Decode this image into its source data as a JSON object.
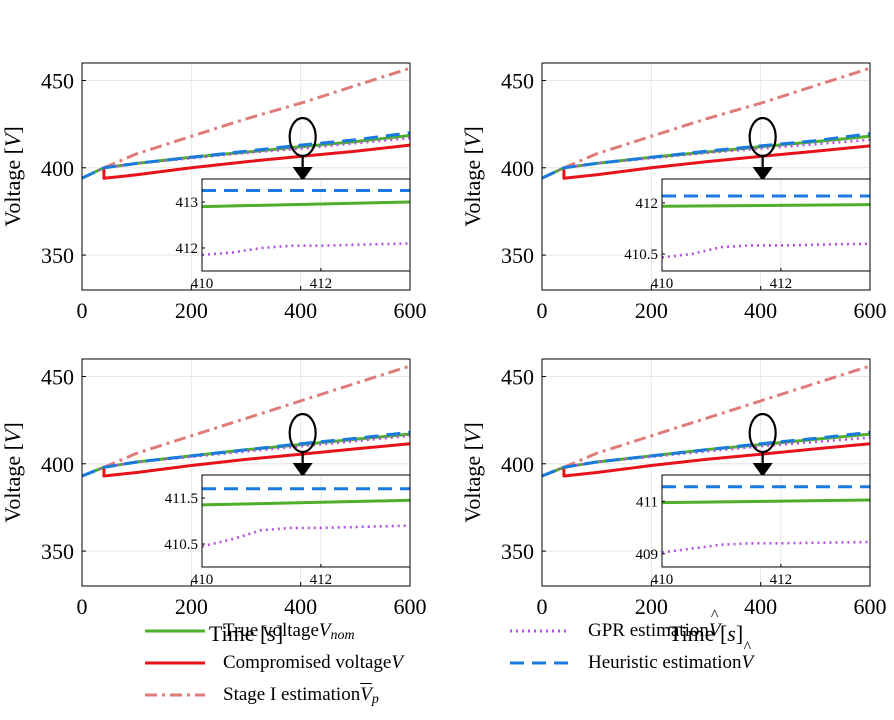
{
  "chart_data": [
    {
      "type": "line",
      "panel": "top-left",
      "ylabel_text": "Voltage [",
      "ylabel_unit": "V",
      "ylabel_close": "]",
      "xlim": [
        0,
        600
      ],
      "ylim": [
        330,
        460
      ],
      "xticks": [
        "0",
        "200",
        "400",
        "600"
      ],
      "yticks": [
        "350",
        "400",
        "450"
      ],
      "series": [
        {
          "name": "True voltage",
          "x": [
            0,
            40,
            100,
            200,
            300,
            400,
            500,
            600
          ],
          "y": [
            394,
            400,
            402.5,
            406,
            409,
            412,
            415,
            418.5
          ]
        },
        {
          "name": "Compromised voltage",
          "x": [
            40,
            40,
            100,
            200,
            300,
            400,
            500,
            600
          ],
          "y": [
            400,
            394,
            396,
            400,
            403.5,
            406.5,
            409.5,
            413
          ]
        },
        {
          "name": "Stage I estimation",
          "x": [
            40,
            100,
            200,
            300,
            400,
            500,
            600
          ],
          "y": [
            400,
            408,
            418,
            428,
            437,
            447,
            457
          ]
        },
        {
          "name": "GPR estimation",
          "x": [
            0,
            40,
            100,
            200,
            300,
            400,
            500,
            600
          ],
          "y": [
            394,
            400,
            402.5,
            405.5,
            408.5,
            411,
            414,
            417
          ]
        },
        {
          "name": "Heuristic estimation",
          "x": [
            0,
            40,
            100,
            200,
            300,
            400,
            500,
            600
          ],
          "y": [
            394,
            400,
            402.5,
            406,
            409.5,
            413,
            416,
            420
          ]
        }
      ],
      "inset": {
        "xlim": [
          410,
          413.5
        ],
        "ylim": [
          411.5,
          413.5
        ],
        "xticks": [
          "410",
          "412"
        ],
        "yticks": [
          "412",
          "413"
        ],
        "series": [
          {
            "name": "True voltage",
            "x": [
              410,
              413.5
            ],
            "y": [
              412.9,
              413
            ]
          },
          {
            "name": "GPR estimation",
            "x": [
              410,
              410.5,
              411,
              411.5,
              412,
              413.5
            ],
            "y": [
              411.85,
              411.9,
              412.0,
              412.05,
              412.05,
              412.1
            ]
          },
          {
            "name": "Heuristic estimation",
            "x": [
              410,
              413.5
            ],
            "y": [
              413.25,
              413.25
            ]
          }
        ]
      }
    },
    {
      "type": "line",
      "panel": "top-right",
      "xlim": [
        0,
        600
      ],
      "ylim": [
        330,
        460
      ],
      "xticks": [
        "0",
        "200",
        "400",
        "600"
      ],
      "yticks": [
        "350",
        "400",
        "450"
      ],
      "series": [
        {
          "name": "True voltage",
          "x": [
            0,
            40,
            100,
            200,
            300,
            400,
            500,
            600
          ],
          "y": [
            394,
            400,
            402.5,
            406,
            409,
            412,
            415,
            418
          ]
        },
        {
          "name": "Compromised voltage",
          "x": [
            40,
            40,
            100,
            200,
            300,
            400,
            500,
            600
          ],
          "y": [
            400,
            394,
            396,
            400,
            403.5,
            406.5,
            409.5,
            412.5
          ]
        },
        {
          "name": "Stage I estimation",
          "x": [
            40,
            100,
            200,
            300,
            400,
            500,
            600
          ],
          "y": [
            400,
            408,
            418,
            428,
            437,
            447,
            457
          ]
        },
        {
          "name": "GPR estimation",
          "x": [
            0,
            40,
            100,
            200,
            300,
            400,
            500,
            600
          ],
          "y": [
            394,
            400,
            402.5,
            405.5,
            408.5,
            411,
            413.5,
            416
          ]
        },
        {
          "name": "Heuristic estimation",
          "x": [
            0,
            40,
            100,
            200,
            300,
            400,
            500,
            600
          ],
          "y": [
            394,
            400,
            402.5,
            406,
            409.5,
            412.5,
            415.5,
            419.5
          ]
        }
      ],
      "inset": {
        "xlim": [
          410,
          413.5
        ],
        "ylim": [
          410,
          412.7
        ],
        "xticks": [
          "410",
          "412"
        ],
        "yticks": [
          "410.5",
          "412"
        ],
        "series": [
          {
            "name": "True voltage",
            "x": [
              410,
              413.5
            ],
            "y": [
              411.9,
              411.95
            ]
          },
          {
            "name": "GPR estimation",
            "x": [
              410,
              410.5,
              411,
              411.5,
              412,
              413.5
            ],
            "y": [
              410.4,
              410.5,
              410.7,
              410.75,
              410.75,
              410.8
            ]
          },
          {
            "name": "Heuristic estimation",
            "x": [
              410,
              413.5
            ],
            "y": [
              412.2,
              412.2
            ]
          }
        ]
      }
    },
    {
      "type": "line",
      "panel": "bottom-left",
      "xlabel_text": "Time [",
      "xlabel_unit": "s",
      "xlabel_close": "]",
      "xlim": [
        0,
        600
      ],
      "ylim": [
        330,
        460
      ],
      "xticks": [
        "0",
        "200",
        "400",
        "600"
      ],
      "yticks": [
        "350",
        "400",
        "450"
      ],
      "series": [
        {
          "name": "True voltage",
          "x": [
            0,
            40,
            100,
            200,
            300,
            400,
            500,
            600
          ],
          "y": [
            393,
            398,
            401,
            404.5,
            408,
            411,
            414,
            417
          ]
        },
        {
          "name": "Compromised voltage",
          "x": [
            40,
            40,
            100,
            200,
            300,
            400,
            500,
            600
          ],
          "y": [
            398,
            393,
            395,
            399,
            402.5,
            405.5,
            408.5,
            411.5
          ]
        },
        {
          "name": "Stage I estimation",
          "x": [
            40,
            100,
            200,
            300,
            400,
            500,
            600
          ],
          "y": [
            398,
            406,
            416,
            426,
            436,
            446,
            456
          ]
        },
        {
          "name": "GPR estimation",
          "x": [
            0,
            40,
            100,
            200,
            300,
            400,
            500,
            600
          ],
          "y": [
            393,
            398,
            401,
            404,
            407,
            410,
            413,
            416
          ]
        },
        {
          "name": "Heuristic estimation",
          "x": [
            0,
            40,
            100,
            200,
            300,
            400,
            500,
            600
          ],
          "y": [
            393,
            398,
            401,
            404.5,
            408,
            411.5,
            414.5,
            418
          ]
        }
      ],
      "inset": {
        "xlim": [
          410,
          413.5
        ],
        "ylim": [
          410,
          412
        ],
        "xticks": [
          "410",
          "412"
        ],
        "yticks": [
          "410.5",
          "411.5"
        ],
        "series": [
          {
            "name": "True voltage",
            "x": [
              410,
              413.5
            ],
            "y": [
              411.35,
              411.45
            ]
          },
          {
            "name": "GPR estimation",
            "x": [
              410,
              410.5,
              411,
              411.5,
              412,
              413.5
            ],
            "y": [
              410.45,
              410.6,
              410.8,
              410.85,
              410.85,
              410.9
            ]
          },
          {
            "name": "Heuristic estimation",
            "x": [
              410,
              413.5
            ],
            "y": [
              411.7,
              411.7
            ]
          }
        ]
      }
    },
    {
      "type": "line",
      "panel": "bottom-right",
      "xlabel_text": "Time [",
      "xlabel_unit": "s",
      "xlabel_close": "]",
      "xlim": [
        0,
        600
      ],
      "ylim": [
        330,
        460
      ],
      "xticks": [
        "0",
        "200",
        "400",
        "600"
      ],
      "yticks": [
        "350",
        "400",
        "450"
      ],
      "series": [
        {
          "name": "True voltage",
          "x": [
            0,
            40,
            100,
            200,
            300,
            400,
            500,
            600
          ],
          "y": [
            393,
            398,
            401,
            404.5,
            408,
            411,
            414,
            417
          ]
        },
        {
          "name": "Compromised voltage",
          "x": [
            40,
            40,
            100,
            200,
            300,
            400,
            500,
            600
          ],
          "y": [
            398,
            393,
            395,
            399,
            402.5,
            405.5,
            408.5,
            411.5
          ]
        },
        {
          "name": "Stage I estimation",
          "x": [
            40,
            100,
            200,
            300,
            400,
            500,
            600
          ],
          "y": [
            398,
            406,
            416,
            426,
            436,
            446,
            456
          ]
        },
        {
          "name": "GPR estimation",
          "x": [
            0,
            40,
            100,
            200,
            300,
            400,
            500,
            600
          ],
          "y": [
            393,
            398,
            401,
            404,
            407,
            410,
            412.5,
            415
          ]
        },
        {
          "name": "Heuristic estimation",
          "x": [
            0,
            40,
            100,
            200,
            300,
            400,
            500,
            600
          ],
          "y": [
            393,
            398,
            401,
            404.5,
            408,
            411.5,
            414.5,
            418
          ]
        }
      ],
      "inset": {
        "xlim": [
          410,
          413.5
        ],
        "ylim": [
          408.5,
          412
        ],
        "xticks": [
          "410",
          "412"
        ],
        "yticks": [
          "409",
          "411"
        ],
        "series": [
          {
            "name": "True voltage",
            "x": [
              410,
              413.5
            ],
            "y": [
              410.95,
              411.05
            ]
          },
          {
            "name": "GPR estimation",
            "x": [
              410,
              410.5,
              411,
              411.5,
              412,
              413.5
            ],
            "y": [
              409.05,
              409.2,
              409.35,
              409.4,
              409.4,
              409.45
            ]
          },
          {
            "name": "Heuristic estimation",
            "x": [
              410,
              413.5
            ],
            "y": [
              411.55,
              411.55
            ]
          }
        ]
      }
    }
  ],
  "legend": {
    "true_voltage": {
      "label": "True voltage ",
      "symbol": "V",
      "sub": "nom"
    },
    "compromised_voltage": {
      "label": "Compromised voltage ",
      "symbol": "V"
    },
    "stage1": {
      "label": "Stage I estimation ",
      "symbol": "V",
      "sub": "p"
    },
    "gpr": {
      "label": "GPR estimation ",
      "symbol": "V"
    },
    "heuristic": {
      "label": "Heuristic estimation ",
      "symbol": "V"
    }
  },
  "colors": {
    "true_voltage": "#4daf2a",
    "compromised_voltage": "#e8121b",
    "stage1": "#e07b7b",
    "gpr": "#b450e6",
    "heuristic": "#1a7ae0",
    "grid": "#e6e6e6"
  }
}
